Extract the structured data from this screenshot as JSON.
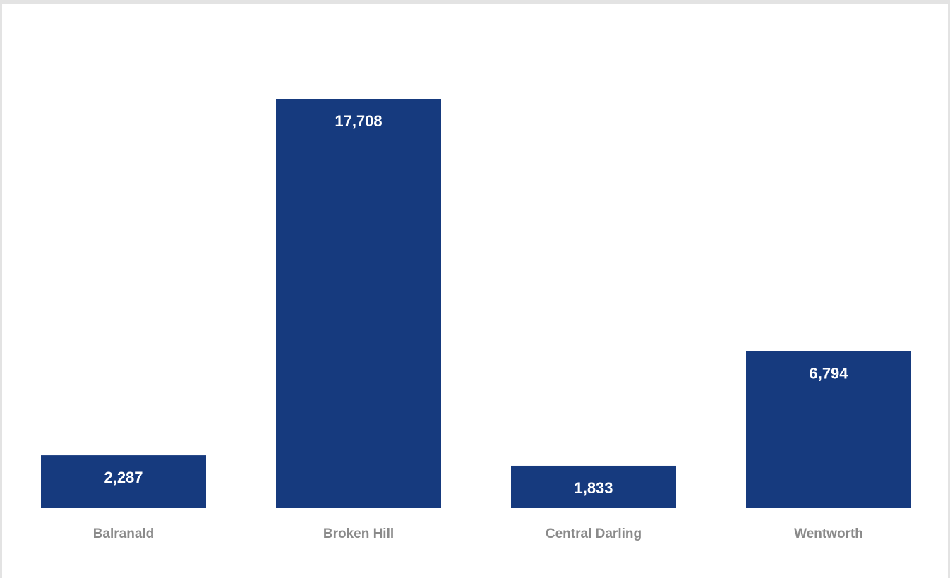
{
  "chart_data": {
    "type": "bar",
    "categories": [
      "Balranald",
      "Broken Hill",
      "Central Darling",
      "Wentworth"
    ],
    "values": [
      2287,
      17708,
      1833,
      6794
    ],
    "value_labels": [
      "2,287",
      "17,708",
      "1,833",
      "6,794"
    ],
    "title": "",
    "xlabel": "",
    "ylabel": "",
    "ylim": [
      0,
      17708
    ],
    "grid": false,
    "legend": "none",
    "bar_color": "#163a7e",
    "label_color": "#ffffff",
    "category_color": "#8a8a8a"
  }
}
